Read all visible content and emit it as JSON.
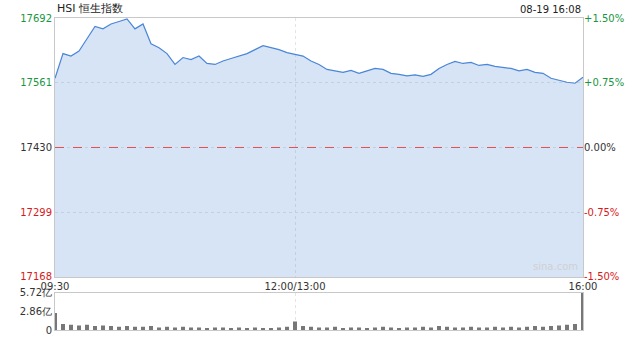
{
  "chart_data": [
    {
      "type": "area",
      "title": "HSI 恒生指数",
      "annotations": [
        "08-19 16:08",
        "sina.com"
      ],
      "categories": [
        "09:30",
        null,
        null,
        null,
        null,
        null,
        null,
        null,
        null,
        null,
        null,
        null,
        null,
        null,
        null,
        null,
        null,
        null,
        null,
        null,
        null,
        null,
        null,
        null,
        null,
        null,
        null,
        null,
        null,
        null,
        "12:00/13:00",
        null,
        null,
        null,
        null,
        null,
        null,
        null,
        null,
        null,
        null,
        null,
        null,
        null,
        null,
        null,
        null,
        null,
        null,
        null,
        null,
        null,
        null,
        null,
        null,
        null,
        null,
        null,
        null,
        null,
        null,
        null,
        null,
        null,
        null,
        null,
        "16:00"
      ],
      "values": [
        17570,
        17620,
        17615,
        17625,
        17650,
        17675,
        17670,
        17680,
        17685,
        17690,
        17670,
        17680,
        17640,
        17632,
        17620,
        17598,
        17612,
        17608,
        17615,
        17600,
        17598,
        17605,
        17610,
        17615,
        17620,
        17628,
        17636,
        17632,
        17628,
        17622,
        17618,
        17615,
        17605,
        17598,
        17588,
        17585,
        17582,
        17586,
        17580,
        17585,
        17590,
        17588,
        17580,
        17578,
        17575,
        17577,
        17574,
        17578,
        17590,
        17598,
        17604,
        17600,
        17602,
        17596,
        17598,
        17594,
        17592,
        17590,
        17585,
        17588,
        17582,
        17580,
        17570,
        17566,
        17562,
        17560,
        17572
      ],
      "color": "#4a86d8",
      "previous_close": 17430,
      "ylim": [
        17168,
        17692
      ],
      "yticks": [
        17168,
        17299,
        17430,
        17561,
        17692
      ],
      "y2lim": [
        -1.5,
        1.5
      ],
      "y2ticks": [
        {
          "value": -1.5,
          "label": "-1.50%"
        },
        {
          "value": -0.75,
          "label": "-0.75%"
        },
        {
          "value": 0,
          "label": "0.00%"
        },
        {
          "value": 0.75,
          "label": "+0.75%"
        },
        {
          "value": 1.5,
          "label": "+1.50%"
        }
      ],
      "grid": true
    },
    {
      "type": "bar",
      "categories": [
        "09:30",
        null,
        null,
        null,
        null,
        null,
        null,
        null,
        null,
        null,
        null,
        null,
        null,
        null,
        null,
        null,
        null,
        null,
        null,
        null,
        null,
        null,
        null,
        null,
        null,
        null,
        null,
        null,
        null,
        null,
        "12:00/13:00",
        null,
        null,
        null,
        null,
        null,
        null,
        null,
        null,
        null,
        null,
        null,
        null,
        null,
        null,
        null,
        null,
        null,
        null,
        null,
        null,
        null,
        null,
        null,
        null,
        null,
        null,
        null,
        null,
        null,
        null,
        null,
        null,
        null,
        null,
        null,
        "16:00"
      ],
      "values": [
        2.6,
        0.9,
        0.8,
        0.7,
        0.8,
        0.6,
        0.7,
        0.6,
        0.5,
        0.6,
        0.5,
        0.5,
        0.6,
        0.4,
        0.5,
        0.4,
        0.5,
        0.4,
        0.4,
        0.3,
        0.4,
        0.4,
        0.3,
        0.4,
        0.3,
        0.4,
        0.3,
        0.3,
        0.4,
        0.5,
        1.3,
        0.6,
        0.5,
        0.4,
        0.4,
        0.5,
        0.3,
        0.4,
        0.4,
        0.3,
        0.4,
        0.5,
        0.4,
        0.3,
        0.4,
        0.4,
        0.5,
        0.4,
        0.6,
        0.5,
        0.4,
        0.4,
        0.5,
        0.4,
        0.4,
        0.5,
        0.4,
        0.5,
        0.4,
        0.5,
        0.6,
        0.5,
        0.6,
        0.7,
        0.8,
        0.9,
        5.72
      ],
      "color": "#777777",
      "ylim": [
        0,
        5.72
      ],
      "yticks": [
        0,
        {
          "value": 2.86,
          "label": "2.86亿"
        },
        {
          "value": 5.72,
          "label": "5.72亿"
        }
      ],
      "tick_labels": "y"
    }
  ]
}
